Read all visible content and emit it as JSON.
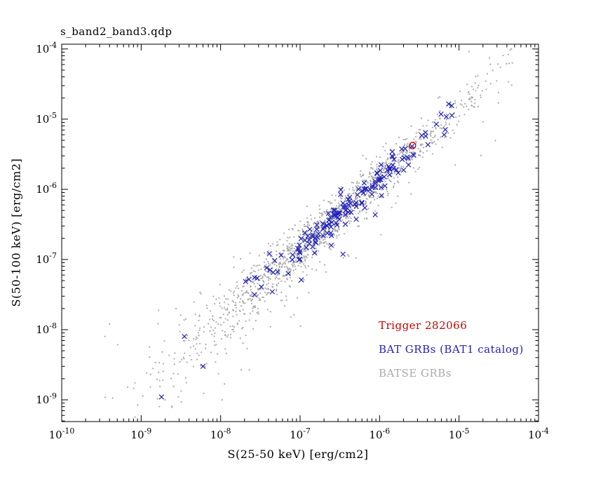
{
  "window": {
    "title": "s_band2_band3.qdp"
  },
  "chart_data": {
    "type": "scatter",
    "title": "s_band2_band3.qdp",
    "xlabel": "S(25-50 keV) [erg/cm2]",
    "ylabel": "S(50-100 keV) [erg/cm2]",
    "xscale": "log",
    "yscale": "log",
    "xlim": [
      1e-10,
      0.0001
    ],
    "ylim": [
      4.9e-10,
      0.000117
    ],
    "grid": false,
    "x_tick_exponents": [
      -10,
      -9,
      -8,
      -7,
      -6,
      -5,
      -4
    ],
    "y_tick_exponents": [
      -9,
      -8,
      -7,
      -6,
      -5,
      -4
    ],
    "legend_position": "lower-right-inside",
    "legend": [
      {
        "label": "Trigger 282066",
        "color": "#cc0000"
      },
      {
        "label": "BAT GRBs (BAT1 catalog)",
        "color": "#2222bb"
      },
      {
        "label": "BATSE GRBs",
        "color": "#aaaaaa"
      }
    ],
    "series": [
      {
        "name": "BATSE GRBs",
        "marker": "dot",
        "color": "#aaaaaa",
        "gen": {
          "seed": 42,
          "count": 1450,
          "logx_mean": -6.7,
          "logx_sigma": 1.0,
          "logx_min": -9.5,
          "logx_max": -4.3,
          "offset": 0.15,
          "noise_base": 0.16,
          "noise_ref": -6.8,
          "noise_slope": 0.09,
          "out_frac": 0.07,
          "out_depth": 0.9
        },
        "points": [
          [
            2.5e-05,
            3.2e-05
          ],
          [
            4.2e-05,
            3.4e-05
          ],
          [
            1.7e-09,
            8e-10
          ],
          [
            3.5e-10,
            8e-09
          ],
          [
            4e-10,
            1.2e-08
          ],
          [
            2e-09,
            1e-09
          ]
        ]
      },
      {
        "name": "BAT GRBs (BAT1 catalog)",
        "marker": "cross",
        "color": "#2222bb",
        "gen": {
          "seed": 7,
          "count": 165,
          "logx_mean": -6.35,
          "logx_sigma": 0.62,
          "logx_min": -8.8,
          "logx_max": -5.05,
          "offset": 0.16,
          "noise_base": 0.1,
          "noise_ref": -7.0,
          "noise_slope": 0.08,
          "out_frac": 0.05,
          "out_depth": 0.55
        },
        "points": [
          [
            1.8e-09,
            1.1e-09
          ],
          [
            7.4e-06,
            1.65e-05
          ],
          [
            3.5e-09,
            8e-09
          ],
          [
            6e-09,
            3e-09
          ],
          [
            2.55e-06,
            4.1e-06
          ],
          [
            6.5e-06,
            6e-06
          ]
        ]
      },
      {
        "name": "Trigger 282066",
        "marker": "circle",
        "color": "#cc0000",
        "points": [
          [
            2.6e-06,
            4.2e-06
          ]
        ]
      }
    ]
  }
}
